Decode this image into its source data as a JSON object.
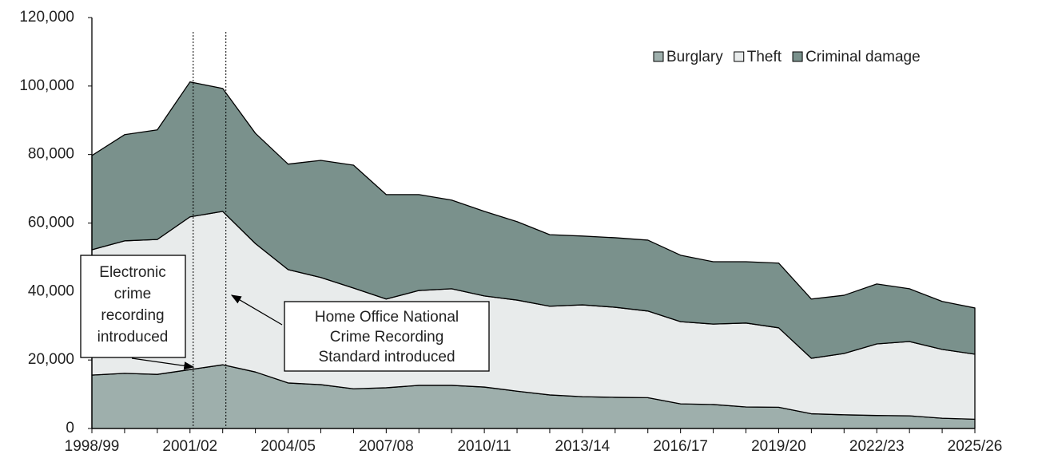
{
  "chart_data": {
    "type": "stacked_area",
    "categories": [
      "1998/99",
      null,
      null,
      "2001/02",
      null,
      null,
      "2004/05",
      null,
      null,
      "2007/08",
      null,
      null,
      "2010/11",
      null,
      null,
      "2013/14",
      null,
      null,
      "2016/17",
      null,
      null,
      "2019/20",
      null,
      null,
      "2022/23",
      null,
      null,
      "2025/26"
    ],
    "series": [
      {
        "name": "Burglary",
        "color": "#9eafac",
        "values": [
          15600,
          16100,
          15800,
          17200,
          18600,
          16500,
          13300,
          12800,
          11600,
          11900,
          12600,
          12600,
          12100,
          10900,
          9800,
          9300,
          9100,
          9000,
          7200,
          7000,
          6300,
          6200,
          4300,
          4000,
          3800,
          3700,
          3000,
          2700
        ]
      },
      {
        "name": "Theft",
        "color": "#e8ebeb",
        "values": [
          36600,
          38700,
          39400,
          44600,
          44800,
          37500,
          33100,
          31300,
          29400,
          25900,
          27700,
          28200,
          26600,
          26600,
          25900,
          26800,
          26300,
          25300,
          24000,
          23500,
          24500,
          23200,
          16200,
          17900,
          20900,
          21700,
          20100,
          19000
        ]
      },
      {
        "name": "Criminal damage",
        "color": "#7a918c",
        "values": [
          27500,
          31000,
          32000,
          39400,
          35900,
          32200,
          30800,
          34200,
          35900,
          30500,
          28000,
          25900,
          24700,
          22900,
          20900,
          20100,
          20300,
          20700,
          19400,
          18200,
          17900,
          18900,
          17300,
          17000,
          17500,
          15400,
          14000,
          13500
        ]
      }
    ],
    "ylim": [
      0,
      120000
    ],
    "yticks": [
      0,
      {
        "value": 20000,
        "label": "20,000"
      },
      {
        "value": 40000,
        "label": "40,000"
      },
      {
        "value": 60000,
        "label": "60,000"
      },
      {
        "value": 80000,
        "label": "80,000"
      },
      {
        "value": 100000,
        "label": "100,000"
      },
      {
        "value": 120000,
        "label": "120,000"
      }
    ],
    "legend": "top-right",
    "annotations": [
      {
        "lines": [
          "Electronic",
          "crime",
          "recording",
          "introduced"
        ]
      },
      {
        "lines": [
          "Home Office National",
          "Crime Recording",
          "Standard introduced"
        ]
      }
    ]
  }
}
